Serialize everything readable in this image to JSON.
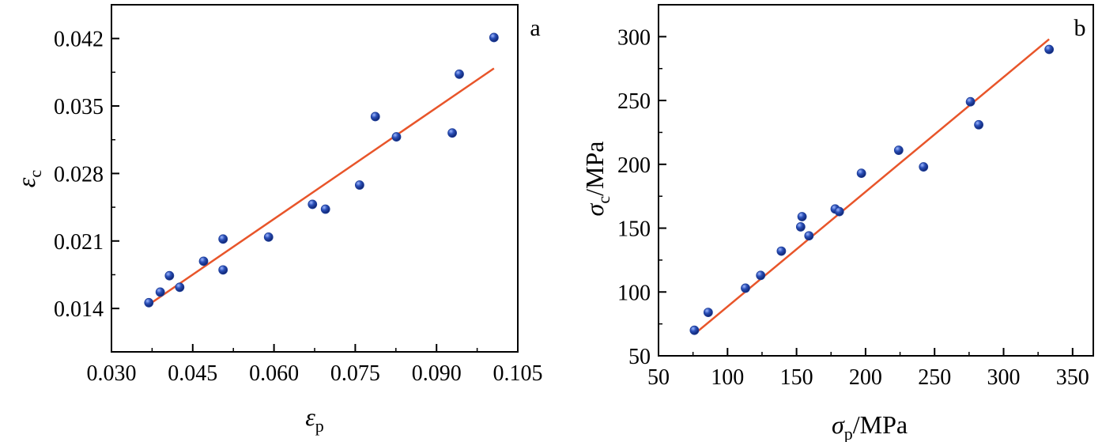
{
  "chart_data": [
    {
      "type": "scatter",
      "panel_label": "a",
      "xlabel": {
        "symbol": "ε",
        "sub": "p",
        "unit": ""
      },
      "ylabel": {
        "symbol": "ε",
        "sub": "c",
        "unit": ""
      },
      "xlim": [
        0.03,
        0.105
      ],
      "ylim": [
        0.0095,
        0.0455
      ],
      "x_ticks": [
        0.03,
        0.045,
        0.06,
        0.075,
        0.09,
        0.105
      ],
      "x_tick_labels": [
        "0.030",
        "0.045",
        "0.060",
        "0.075",
        "0.090",
        "0.105"
      ],
      "y_ticks": [
        0.014,
        0.021,
        0.028,
        0.035,
        0.042
      ],
      "y_tick_labels": [
        "0.014",
        "0.021",
        "0.028",
        "0.035",
        "0.042"
      ],
      "grid": false,
      "legend": "none",
      "colors": {
        "points": "#1f3f9a",
        "fit": "#e8552a"
      },
      "series": [
        {
          "x": [
            0.0369,
            0.039,
            0.0407,
            0.0426,
            0.047,
            0.0506,
            0.0506,
            0.059,
            0.0671,
            0.0695,
            0.0758,
            0.0787,
            0.0826,
            0.0929,
            0.0942,
            0.1006
          ],
          "y": [
            0.0146,
            0.0157,
            0.0174,
            0.0162,
            0.0189,
            0.018,
            0.0212,
            0.0214,
            0.0248,
            0.0243,
            0.0268,
            0.0339,
            0.0318,
            0.0322,
            0.0383,
            0.0421
          ]
        }
      ],
      "fit_line": {
        "x": [
          0.0369,
          0.1006
        ],
        "y": [
          0.0144,
          0.0389
        ]
      }
    },
    {
      "type": "scatter",
      "panel_label": "b",
      "xlabel": {
        "symbol": "σ",
        "sub": "p",
        "unit": "/MPa"
      },
      "ylabel": {
        "symbol": "σ",
        "sub": "c",
        "unit": "/MPa"
      },
      "xlim": [
        50,
        365
      ],
      "ylim": [
        50,
        325
      ],
      "x_ticks": [
        50,
        100,
        150,
        200,
        250,
        300,
        350
      ],
      "x_tick_labels": [
        "50",
        "100",
        "150",
        "200",
        "250",
        "300",
        "350"
      ],
      "y_ticks": [
        50,
        100,
        150,
        200,
        250,
        300
      ],
      "y_tick_labels": [
        "50",
        "100",
        "150",
        "200",
        "250",
        "300"
      ],
      "grid": false,
      "legend": "none",
      "colors": {
        "points": "#1f3f9a",
        "fit": "#e8552a"
      },
      "series": [
        {
          "x": [
            76,
            86,
            113,
            124,
            139,
            153,
            154,
            159,
            178,
            181,
            197,
            224,
            242,
            276,
            282,
            333
          ],
          "y": [
            70,
            84,
            103,
            113,
            132,
            151,
            159,
            144,
            165,
            163,
            193,
            211,
            198,
            249,
            231,
            290
          ]
        }
      ],
      "fit_line": {
        "x": [
          76,
          333
        ],
        "y": [
          67,
          298
        ]
      }
    }
  ]
}
